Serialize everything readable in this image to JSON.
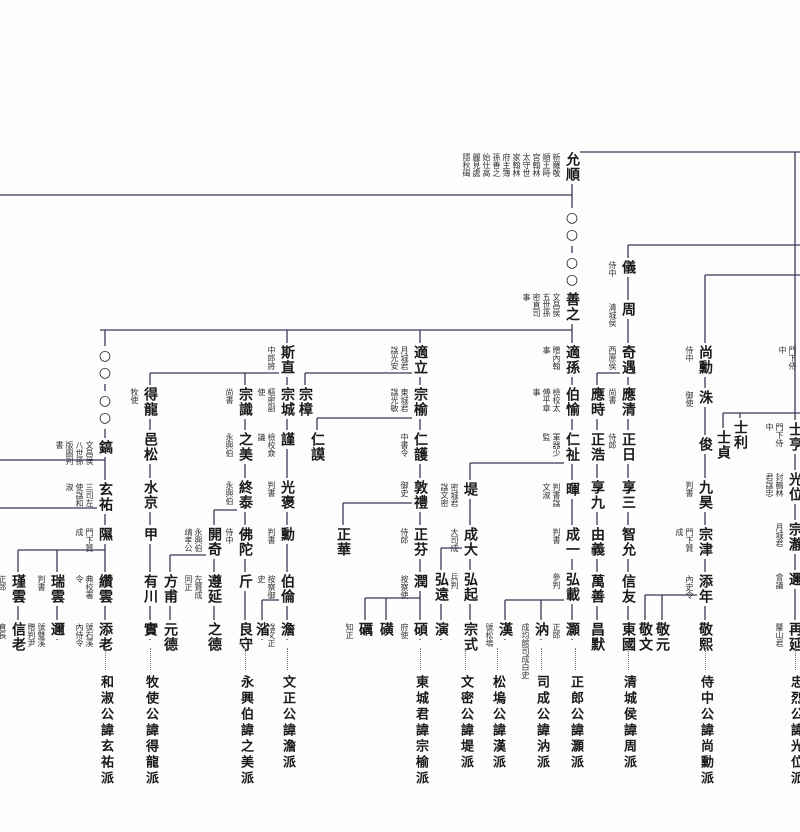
{
  "nodes": [
    {
      "name": "允順",
      "note": "新羅敬順王時宮翰林太守世家翰林府主簿孫善之始仕高麗見處隱秋碣"
    },
    {
      "name": "○○",
      "note": ""
    },
    {
      "name": "○○",
      "note": ""
    },
    {
      "name": "善之",
      "note": "文昌侯五世孫密直司事"
    },
    {
      "name": "適孫",
      "note": "贈內翰事"
    },
    {
      "name": "伯愉",
      "note": "檢校太傅平章事"
    },
    {
      "name": "仁祉",
      "note": "軍器少監"
    },
    {
      "name": "暉",
      "note": "判書諡文淑"
    },
    {
      "name": "成一",
      "note": "判書"
    },
    {
      "name": "弘載",
      "note": "參判"
    },
    {
      "name": "灝",
      "note": "正郎"
    },
    {
      "name": "汭",
      "note": "成均館司成白史"
    },
    {
      "name": "漢",
      "note": "號松塢"
    },
    {
      "name": "堤",
      "note": "密城君諡文密"
    },
    {
      "name": "成大",
      "note": "大司成"
    },
    {
      "name": "弘起",
      "note": "兵判"
    },
    {
      "name": "弘遠",
      "note": ""
    },
    {
      "name": "宗式",
      "note": ""
    },
    {
      "name": "演",
      "note": ""
    },
    {
      "name": "適立",
      "note": "月城君諡光安"
    },
    {
      "name": "宗榆",
      "note": "東城君諡光敏"
    },
    {
      "name": "宗樟",
      "note": ""
    },
    {
      "name": "仁頀",
      "note": "中書令"
    },
    {
      "name": "仁謨",
      "note": ""
    },
    {
      "name": "敦禮",
      "note": "御史"
    },
    {
      "name": "正芬",
      "note": "侍郎"
    },
    {
      "name": "正華",
      "note": ""
    },
    {
      "name": "潤",
      "note": "按察使"
    },
    {
      "name": "碩",
      "note": "府使"
    },
    {
      "name": "磺",
      "note": ""
    },
    {
      "name": "礪",
      "note": "知正"
    },
    {
      "name": "斯直",
      "note": "中郎將"
    },
    {
      "name": "宗城",
      "note": "樞密副使"
    },
    {
      "name": "謹",
      "note": "檢校僉議"
    },
    {
      "name": "光褒",
      "note": "判書"
    },
    {
      "name": "勳",
      "note": "判書"
    },
    {
      "name": "伯倫",
      "note": "按察御史"
    },
    {
      "name": "澹",
      "note": "諡文正"
    },
    {
      "name": "渻",
      "note": ""
    },
    {
      "name": "宗識",
      "note": "尚書"
    },
    {
      "name": "之美",
      "note": "永興伯"
    },
    {
      "name": "終泰",
      "note": "永興伯"
    },
    {
      "name": "佛陀",
      "note": "侍中"
    },
    {
      "name": "開奇",
      "note": "永興伯靖孝公"
    },
    {
      "name": "斤",
      "note": ""
    },
    {
      "name": "良守",
      "note": ""
    },
    {
      "name": "遵延",
      "note": "左贊成同正"
    },
    {
      "name": "之德",
      "note": ""
    },
    {
      "name": "方甫",
      "note": ""
    },
    {
      "name": "元德",
      "note": ""
    },
    {
      "name": "得龍",
      "note": "牧使"
    },
    {
      "name": "邑松",
      "note": ""
    },
    {
      "name": "水京",
      "note": ""
    },
    {
      "name": "甲",
      "note": ""
    },
    {
      "name": "有川",
      "note": ""
    },
    {
      "name": "實",
      "note": ""
    },
    {
      "name": "○○",
      "note": ""
    },
    {
      "name": "○○",
      "note": ""
    },
    {
      "name": "鎬",
      "note": "文昌侯八世孫版圖判書"
    },
    {
      "name": "玄祐",
      "note": "三司左使諡和淑"
    },
    {
      "name": "隰",
      "note": "門下贊成"
    },
    {
      "name": "纘雲",
      "note": "典校署令"
    },
    {
      "name": "瑞雲",
      "note": "判書"
    },
    {
      "name": "瑾雲",
      "note": "正郎"
    },
    {
      "name": "添老",
      "note": "號石溪內侍令"
    },
    {
      "name": "邇",
      "note": "號雙溪贈判尹"
    },
    {
      "name": "信老",
      "note": "直長"
    },
    {
      "name": "儀",
      "note": "侍中"
    },
    {
      "name": "周",
      "note": "清城侯"
    },
    {
      "name": "奇遇",
      "note": "西原侯"
    },
    {
      "name": "應清",
      "note": "尚書"
    },
    {
      "name": "應時",
      "note": ""
    },
    {
      "name": "正日",
      "note": "侍郎"
    },
    {
      "name": "正浩",
      "note": ""
    },
    {
      "name": "享三",
      "note": ""
    },
    {
      "name": "享九",
      "note": ""
    },
    {
      "name": "智允",
      "note": ""
    },
    {
      "name": "由義",
      "note": ""
    },
    {
      "name": "信友",
      "note": ""
    },
    {
      "name": "萬善",
      "note": ""
    },
    {
      "name": "東國",
      "note": ""
    },
    {
      "name": "昌默",
      "note": ""
    },
    {
      "name": "尚勳",
      "note": "侍中"
    },
    {
      "name": "洙",
      "note": "御使"
    },
    {
      "name": "俊",
      "note": ""
    },
    {
      "name": "九昊",
      "note": "判書"
    },
    {
      "name": "宗津",
      "note": "門下贊成"
    },
    {
      "name": "添年",
      "note": "內史令"
    },
    {
      "name": "敬熙",
      "note": ""
    },
    {
      "name": "敬元",
      "note": ""
    },
    {
      "name": "敬文",
      "note": ""
    },
    {
      "name": "士亨",
      "note": "門下侍中"
    },
    {
      "name": "光位",
      "note": "封鶴林君諡忠"
    },
    {
      "name": "宗瀞",
      "note": "月城君"
    },
    {
      "name": "邇",
      "note": "會議"
    },
    {
      "name": "再延",
      "note": "釐山君"
    },
    {
      "name": "士利",
      "note": ""
    },
    {
      "name": "士貞",
      "note": ""
    },
    {
      "name": "",
      "note": "門下侍中"
    }
  ],
  "lineages": [
    "和淑公諱玄祐派",
    "牧使公諱得龍派",
    "永興伯諱之美派",
    "文正公諱澹派",
    "東城君諱宗榆派",
    "文密公諱堤派",
    "松塢公諱漢派",
    "司成公諱汭派",
    "正郎公諱灝派",
    "清城侯諱周派",
    "侍中公諱尚勳派",
    "忠烈公諱光位派"
  ],
  "line_color": "#3a3a5a"
}
